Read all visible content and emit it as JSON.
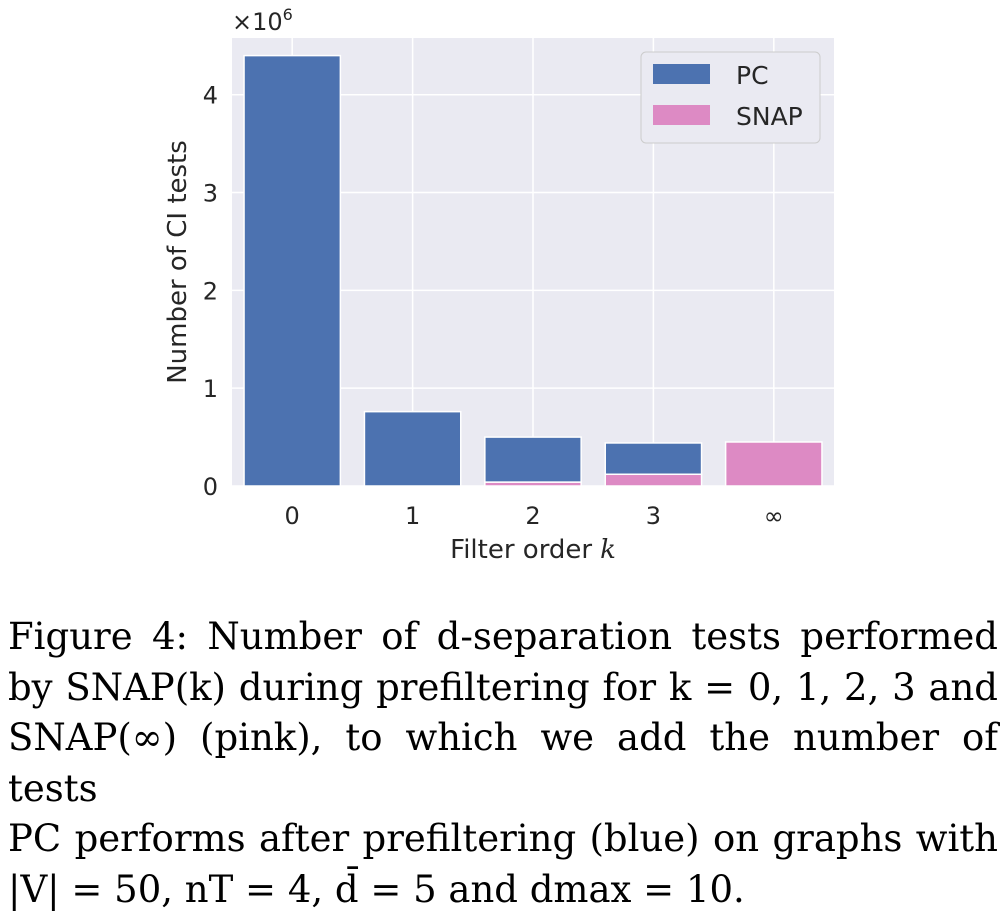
{
  "chart_data": {
    "type": "bar",
    "stacked": true,
    "categories": [
      "0",
      "1",
      "2",
      "3",
      "∞"
    ],
    "series": [
      {
        "name": "SNAP",
        "color": "#dd8ac4",
        "values": [
          0,
          0,
          0.04,
          0.12,
          0.45
        ]
      },
      {
        "name": "PC",
        "color": "#4c72b0",
        "values": [
          4.4,
          0.76,
          0.46,
          0.32,
          0
        ]
      }
    ],
    "xlabel": "Filter order",
    "xlabel_var": "k",
    "ylabel": "Number of CI tests",
    "y_multiplier": "×10",
    "y_multiplier_exp": "6",
    "ylim": [
      0,
      4.58
    ],
    "yticks": [
      "0",
      "1",
      "2",
      "3",
      "4"
    ],
    "legend": [
      "PC",
      "SNAP"
    ],
    "legend_position": "top-right"
  },
  "caption": {
    "lines": [
      "Figure 4:  Number of d-separation tests performed",
      "by SNAP(k) during prefiltering for k = 0, 1, 2, 3 and",
      "SNAP(∞) (pink), to which we add the number of tests",
      "PC performs after prefiltering (blue) on graphs with",
      "|V| = 50, nT = 4, d̄ = 5 and dmax = 10."
    ]
  }
}
